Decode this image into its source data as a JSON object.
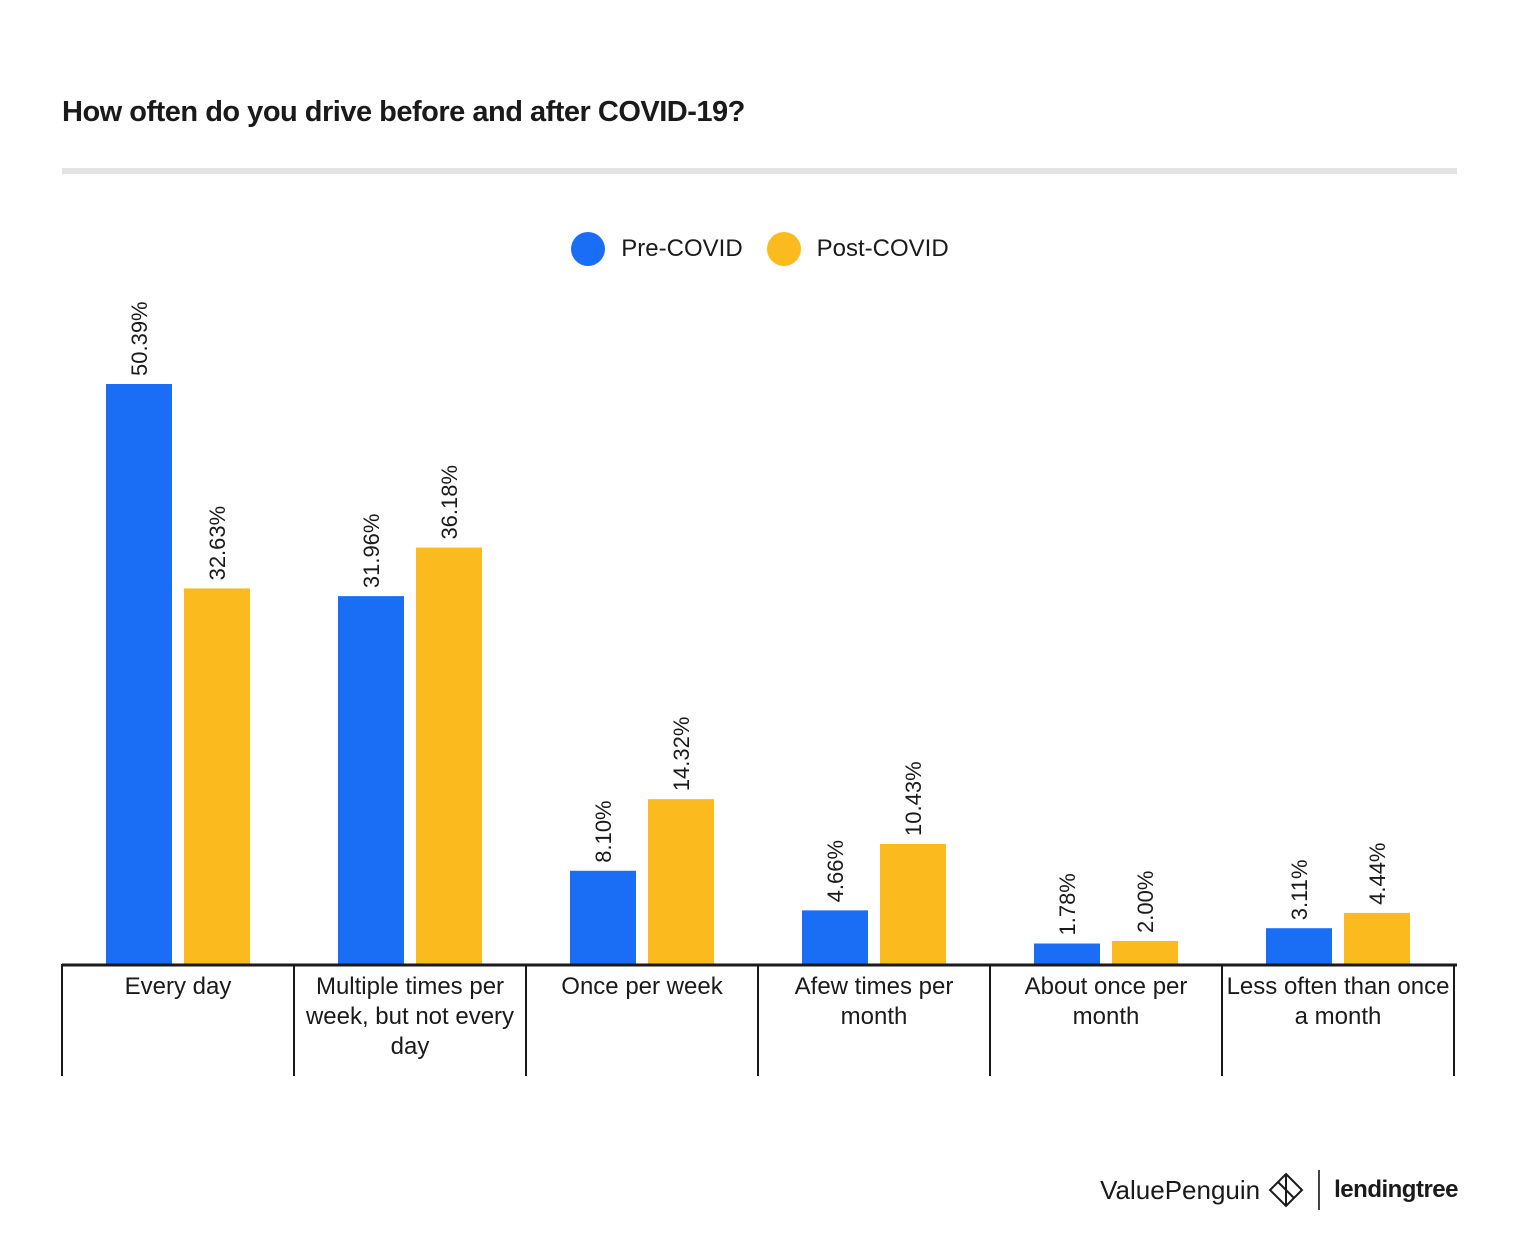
{
  "page": {
    "title": "How often do you drive before and after COVID-19?"
  },
  "footer": {
    "brand_primary": "ValuePenguin",
    "brand_primary_icon": "penguin-diamond-icon",
    "brand_secondary": "lendingtree"
  },
  "colors": {
    "pre": "#1a6ef5",
    "post": "#fbba1e"
  },
  "chart_data": {
    "type": "bar",
    "title": "How often do you drive before and after COVID-19?",
    "xlabel": "",
    "ylabel": "",
    "ylim": [
      0,
      55
    ],
    "grid": false,
    "legend_position": "top-center",
    "categories": [
      "Every day",
      "Multiple times per week, but not every day",
      "Once per week",
      "Afew times per month",
      "About once per month",
      "Less often than once a month"
    ],
    "series": [
      {
        "name": "Pre-COVID",
        "values": [
          50.39,
          31.96,
          8.1,
          4.66,
          1.78,
          3.11
        ],
        "labels": [
          "50.39%",
          "31.96%",
          "8.10%",
          "4.66%",
          "1.78%",
          "3.11%"
        ]
      },
      {
        "name": "Post-COVID",
        "values": [
          32.63,
          36.18,
          14.32,
          10.43,
          2.0,
          4.44
        ],
        "labels": [
          "32.63%",
          "36.18%",
          "14.32%",
          "10.43%",
          "2.00%",
          "4.44%"
        ]
      }
    ]
  }
}
